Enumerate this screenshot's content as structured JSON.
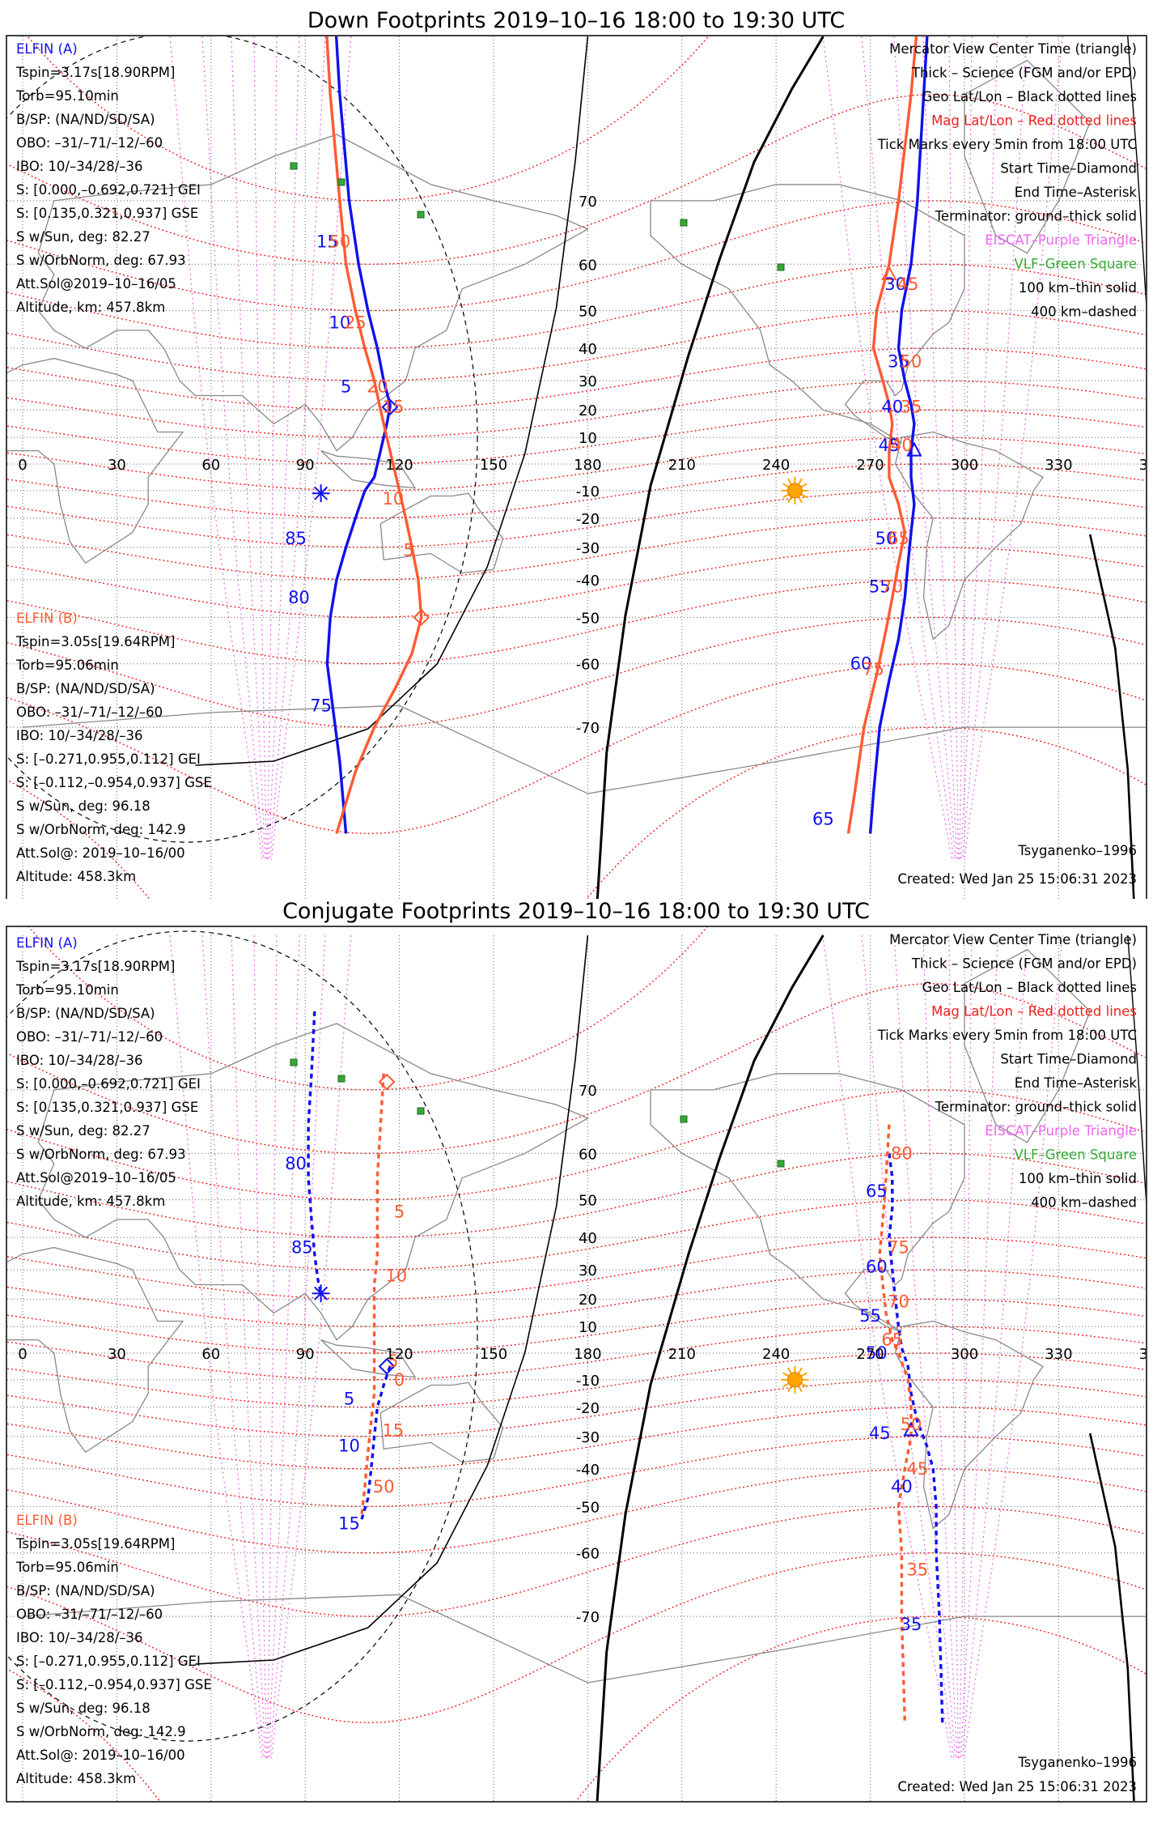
{
  "colors": {
    "elfin_a": "#1010ee",
    "elfin_b": "#ff5a32",
    "mag": "#ee2020",
    "eiscat": "#ee66ee",
    "vlf": "#33aa33",
    "geo_grid": "#666666",
    "sun": "#ffa500"
  },
  "lon_ticks": [
    "0",
    "30",
    "60",
    "90",
    "120",
    "150",
    "180",
    "210",
    "240",
    "270",
    "300",
    "330",
    "360"
  ],
  "lat_ticks": [
    "70",
    "60",
    "50",
    "40",
    "30",
    "20",
    "10",
    "-10",
    "-20",
    "-30",
    "-40",
    "-50",
    "-60",
    "-70"
  ],
  "legend": [
    {
      "text": "Mercator View Center Time (triangle)",
      "color": "#000000"
    },
    {
      "text": "Thick – Science (FGM and/or EPD)",
      "color": "#000000"
    },
    {
      "text": "Geo Lat/Lon – Black dotted lines",
      "color": "#000000"
    },
    {
      "text": "Mag Lat/Lon – Red dotted lines",
      "color": "#ee2020"
    },
    {
      "text": "Tick Marks every 5min from 18:00 UTC",
      "color": "#000000"
    },
    {
      "text": "Start Time–Diamond",
      "color": "#000000"
    },
    {
      "text": "End Time–Asterisk",
      "color": "#000000"
    },
    {
      "text": "Terminator: ground–thick solid",
      "color": "#000000"
    },
    {
      "text": "EISCAT–Purple Triangle",
      "color": "#ee66ee"
    },
    {
      "text": "VLF–Green Square",
      "color": "#33aa33"
    },
    {
      "text": "100 km–thin solid",
      "color": "#000000"
    },
    {
      "text": "400 km–dashed",
      "color": "#000000"
    }
  ],
  "elfin_a": {
    "name": "ELFIN (A)",
    "lines": [
      "Tspin=3.17s[18.90RPM]",
      "Torb=95.10min",
      "B/SP: (NA/ND/SD/SA)",
      "OBO: –31/–71/–12/–60",
      "IBO: 10/–34/28/–36",
      "S: [0.000,–0.692,0.721] GEI",
      "S: [0.135,0.321,0.937] GSE",
      "S w/Sun, deg: 82.27",
      "S w/OrbNorm, deg: 67.93",
      "Att.Sol@2019–10–16/05",
      "Altitude, km: 457.8km"
    ]
  },
  "elfin_b": {
    "name": "ELFIN (B)",
    "lines": [
      "Tspin=3.05s[19.64RPM]",
      "Torb=95.06min",
      "B/SP: (NA/ND/SD/SA)",
      "OBO: –31/–71/–12/–60",
      "IBO: 10/–34/28/–36",
      "S: [–0.271,0.955,0.112] GEI",
      "S: [–0.112,–0.954,0.937] GSE",
      "S w/Sun, deg: 96.18",
      "S w/OrbNorm, deg: 142.9",
      "Att.Sol@: 2019–10–16/00",
      "Altitude: 458.3km"
    ]
  },
  "footer": {
    "model": "Tsyganenko–1996",
    "created": "Created: Wed Jan 25 15:06:31 2023"
  },
  "panels": [
    {
      "title": "Down Footprints 2019–10–16 18:00 to 19:30 UTC",
      "dashed": false,
      "tracks": {
        "a_east": [
          [
            289,
            87
          ],
          [
            287,
            80
          ],
          [
            285,
            70
          ],
          [
            283,
            60
          ],
          [
            280,
            50
          ],
          [
            279,
            40
          ],
          [
            281,
            30
          ],
          [
            283,
            22
          ],
          [
            284,
            15
          ],
          [
            283,
            5
          ],
          [
            283,
            -5
          ],
          [
            284,
            -15
          ],
          [
            283,
            -25
          ],
          [
            282,
            -35
          ],
          [
            281,
            -45
          ],
          [
            279,
            -55
          ],
          [
            276,
            -63
          ],
          [
            273,
            -70
          ],
          [
            271,
            -77
          ],
          [
            270,
            -80
          ]
        ],
        "b_east": [
          [
            286,
            87
          ],
          [
            283,
            80
          ],
          [
            279,
            70
          ],
          [
            276,
            60
          ],
          [
            272,
            50
          ],
          [
            271,
            40
          ],
          [
            274,
            30
          ],
          [
            276,
            22
          ],
          [
            277,
            15
          ],
          [
            276,
            5
          ],
          [
            276,
            -5
          ],
          [
            279,
            -15
          ],
          [
            281,
            -25
          ],
          [
            279,
            -35
          ],
          [
            277,
            -45
          ],
          [
            275,
            -53
          ],
          [
            272,
            -62
          ],
          [
            268,
            -70
          ],
          [
            265,
            -77
          ],
          [
            263,
            -80
          ]
        ],
        "a_west": [
          [
            99,
            87
          ],
          [
            101,
            80
          ],
          [
            104,
            70
          ],
          [
            107,
            60
          ],
          [
            110,
            50
          ],
          [
            113,
            40
          ],
          [
            115,
            30
          ],
          [
            117,
            22
          ],
          [
            117,
            21
          ],
          [
            116,
            15
          ],
          [
            114,
            5
          ],
          [
            112,
            -5
          ],
          [
            109,
            -10
          ],
          [
            106,
            -20
          ],
          [
            103,
            -30
          ],
          [
            100,
            -40
          ],
          [
            98,
            -50
          ],
          [
            97,
            -60
          ],
          [
            99,
            -68
          ],
          [
            101,
            -74
          ],
          [
            103,
            -80
          ]
        ],
        "b_west": [
          [
            96,
            87
          ],
          [
            98,
            80
          ],
          [
            101,
            70
          ],
          [
            103,
            60
          ],
          [
            106,
            50
          ],
          [
            109,
            40
          ],
          [
            112,
            30
          ],
          [
            114,
            20
          ],
          [
            116,
            10
          ],
          [
            118,
            0
          ],
          [
            120,
            -10
          ],
          [
            122,
            -20
          ],
          [
            124,
            -30
          ],
          [
            126,
            -40
          ],
          [
            127,
            -50
          ],
          [
            124,
            -58
          ],
          [
            119,
            -64
          ],
          [
            112,
            -70
          ],
          [
            106,
            -75
          ],
          [
            100,
            -80
          ]
        ]
      },
      "markers": [
        {
          "type": "diamond",
          "lon": 117,
          "lat": 21,
          "color": "#1010ee"
        },
        {
          "type": "diamond",
          "lon": 127,
          "lat": -50,
          "color": "#ff5a32"
        },
        {
          "type": "asterisk",
          "lon": 95,
          "lat": -11,
          "color": "#1010ee"
        },
        {
          "type": "triangle",
          "lon": 284,
          "lat": 5,
          "color": "#1010ee"
        },
        {
          "type": "triangle",
          "lon": 276,
          "lat": 58,
          "color": "#ff5a32"
        }
      ],
      "labels": [
        {
          "t": "25",
          "lon": 288,
          "lat": 84,
          "c": "a"
        },
        {
          "t": "70",
          "lon": 292,
          "lat": 84,
          "c": "b"
        },
        {
          "t": "15",
          "lon": 97,
          "lat": 64,
          "c": "a"
        },
        {
          "t": "50",
          "lon": 101,
          "lat": 64,
          "c": "b"
        },
        {
          "t": "30",
          "lon": 278,
          "lat": 56,
          "c": "a"
        },
        {
          "t": "45",
          "lon": 282,
          "lat": 56,
          "c": "b"
        },
        {
          "t": "10",
          "lon": 101,
          "lat": 47,
          "c": "a"
        },
        {
          "t": "25",
          "lon": 106,
          "lat": 47,
          "c": "b"
        },
        {
          "t": "35",
          "lon": 279,
          "lat": 36,
          "c": "a"
        },
        {
          "t": "50",
          "lon": 283,
          "lat": 36,
          "c": "b"
        },
        {
          "t": "5",
          "lon": 103,
          "lat": 28,
          "c": "a"
        },
        {
          "t": "20",
          "lon": 113,
          "lat": 28,
          "c": "b"
        },
        {
          "t": "40",
          "lon": 277,
          "lat": 21,
          "c": "a"
        },
        {
          "t": "15",
          "lon": 118,
          "lat": 21,
          "c": "b"
        },
        {
          "t": "35",
          "lon": 283,
          "lat": 21,
          "c": "b"
        },
        {
          "t": "45",
          "lon": 276,
          "lat": 7,
          "c": "a"
        },
        {
          "t": "40",
          "lon": 280,
          "lat": 7,
          "c": "b"
        },
        {
          "t": "10",
          "lon": 118,
          "lat": -13,
          "c": "b"
        },
        {
          "t": "85",
          "lon": 87,
          "lat": -27,
          "c": "a"
        },
        {
          "t": "50",
          "lon": 275,
          "lat": -27,
          "c": "a"
        },
        {
          "t": "65",
          "lon": 279,
          "lat": -27,
          "c": "b"
        },
        {
          "t": "5",
          "lon": 123,
          "lat": -31,
          "c": "b"
        },
        {
          "t": "55",
          "lon": 273,
          "lat": -42,
          "c": "a"
        },
        {
          "t": "70",
          "lon": 277,
          "lat": -42,
          "c": "b"
        },
        {
          "t": "80",
          "lon": 88,
          "lat": -45,
          "c": "a"
        },
        {
          "t": "60",
          "lon": 267,
          "lat": -60,
          "c": "a"
        },
        {
          "t": "75",
          "lon": 271,
          "lat": -61,
          "c": "b"
        },
        {
          "t": "75",
          "lon": 95,
          "lat": -67,
          "c": "a"
        },
        {
          "t": "65",
          "lon": 255,
          "lat": -79,
          "c": "a"
        }
      ]
    },
    {
      "title": "Conjugate Footprints 2019–10–16 18:00 to 19:30 UTC",
      "dashed": true,
      "tracks": {
        "a_east": [
          [
            276,
            60
          ],
          [
            277,
            55
          ],
          [
            277,
            48
          ],
          [
            276,
            40
          ],
          [
            277,
            30
          ],
          [
            278,
            20
          ],
          [
            279,
            10
          ],
          [
            280,
            2
          ],
          [
            282,
            -5
          ],
          [
            283,
            -15
          ],
          [
            285,
            -25
          ],
          [
            288,
            -33
          ],
          [
            290,
            -40
          ],
          [
            291,
            -50
          ],
          [
            291,
            -60
          ],
          [
            292,
            -70
          ],
          [
            293,
            -80
          ]
        ],
        "b_east": [
          [
            276,
            65
          ],
          [
            275,
            55
          ],
          [
            274,
            45
          ],
          [
            273,
            35
          ],
          [
            274,
            25
          ],
          [
            275,
            15
          ],
          [
            277,
            5
          ],
          [
            279,
            0
          ],
          [
            282,
            -10
          ],
          [
            283,
            -20
          ],
          [
            283,
            -30
          ],
          [
            281,
            -40
          ],
          [
            279,
            -50
          ],
          [
            280,
            -60
          ],
          [
            280,
            -70
          ],
          [
            281,
            -80
          ]
        ],
        "a_west": [
          [
            93,
            78
          ],
          [
            92,
            72
          ],
          [
            91,
            65
          ],
          [
            91,
            55
          ],
          [
            92,
            45
          ],
          [
            93,
            35
          ],
          [
            94,
            27
          ],
          [
            95,
            22
          ]
        ],
        "a_west2": [
          [
            117,
            -5
          ],
          [
            115,
            -12
          ],
          [
            113,
            -20
          ],
          [
            112,
            -30
          ],
          [
            111,
            -40
          ],
          [
            110,
            -48
          ],
          [
            108,
            -53
          ]
        ],
        "b_west": [
          [
            115,
            72
          ],
          [
            114,
            65
          ],
          [
            113,
            55
          ],
          [
            113,
            45
          ],
          [
            113,
            35
          ],
          [
            112,
            25
          ],
          [
            112,
            15
          ],
          [
            112,
            5
          ],
          [
            112,
            -5
          ],
          [
            112,
            -15
          ],
          [
            111,
            -25
          ],
          [
            110,
            -35
          ],
          [
            109,
            -45
          ],
          [
            108,
            -52
          ]
        ]
      },
      "markers": [
        {
          "type": "diamond",
          "lon": 116,
          "lat": 71,
          "color": "#ff5a32"
        },
        {
          "type": "diamond",
          "lon": 116,
          "lat": -5,
          "color": "#1010ee"
        },
        {
          "type": "asterisk",
          "lon": 95,
          "lat": 22,
          "color": "#1010ee"
        },
        {
          "type": "triangle",
          "lon": 283,
          "lat": -28,
          "color": "#1010ee"
        }
      ],
      "labels": [
        {
          "t": "80",
          "lon": 280,
          "lat": 60,
          "c": "b"
        },
        {
          "t": "80",
          "lon": 87,
          "lat": 58,
          "c": "a"
        },
        {
          "t": "65",
          "lon": 272,
          "lat": 52,
          "c": "a"
        },
        {
          "t": "5",
          "lon": 120,
          "lat": 47,
          "c": "b"
        },
        {
          "t": "85",
          "lon": 89,
          "lat": 37,
          "c": "a"
        },
        {
          "t": "75",
          "lon": 279,
          "lat": 37,
          "c": "b"
        },
        {
          "t": "60",
          "lon": 272,
          "lat": 31,
          "c": "a"
        },
        {
          "t": "10",
          "lon": 119,
          "lat": 28,
          "c": "b"
        },
        {
          "t": "70",
          "lon": 279,
          "lat": 19,
          "c": "b"
        },
        {
          "t": "55",
          "lon": 270,
          "lat": 14,
          "c": "a"
        },
        {
          "t": "65",
          "lon": 277,
          "lat": 5,
          "c": "b"
        },
        {
          "t": "50",
          "lon": 272,
          "lat": 0,
          "c": "a"
        },
        {
          "t": "5",
          "lon": 118,
          "lat": -3,
          "c": "b"
        },
        {
          "t": "0",
          "lon": 120,
          "lat": -10,
          "c": "b"
        },
        {
          "t": "5",
          "lon": 104,
          "lat": -17,
          "c": "a"
        },
        {
          "t": "15",
          "lon": 118,
          "lat": -28,
          "c": "b"
        },
        {
          "t": "45",
          "lon": 273,
          "lat": -29,
          "c": "a"
        },
        {
          "t": "50",
          "lon": 283,
          "lat": -26,
          "c": "b"
        },
        {
          "t": "10",
          "lon": 104,
          "lat": -33,
          "c": "a"
        },
        {
          "t": "45",
          "lon": 285,
          "lat": -40,
          "c": "b"
        },
        {
          "t": "40",
          "lon": 280,
          "lat": -45,
          "c": "a"
        },
        {
          "t": "50",
          "lon": 115,
          "lat": -45,
          "c": "b"
        },
        {
          "t": "15",
          "lon": 104,
          "lat": -54,
          "c": "a"
        },
        {
          "t": "35",
          "lon": 285,
          "lat": -63,
          "c": "b"
        },
        {
          "t": "35",
          "lon": 283,
          "lat": -71,
          "c": "a"
        }
      ]
    }
  ]
}
